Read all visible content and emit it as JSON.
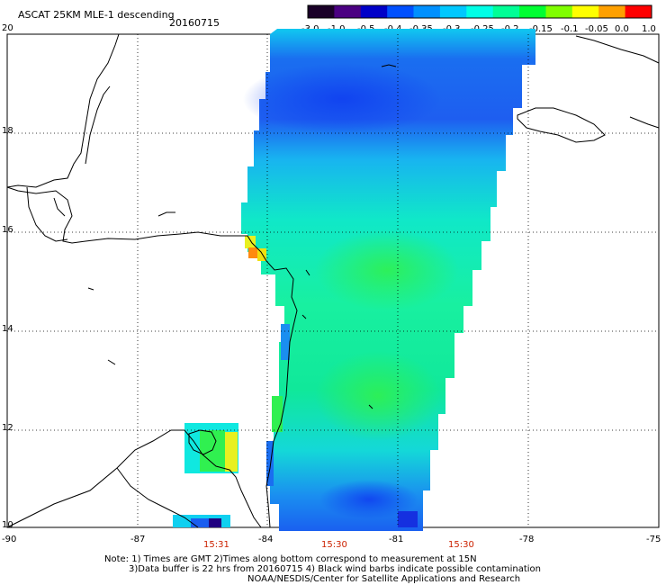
{
  "header": {
    "title": "ASCAT 25KM MLE-1 descending",
    "date": "20160715"
  },
  "colorbar": {
    "labels": [
      "-3.0",
      "-1.0",
      "-0.5",
      "-0.4",
      "-0.35",
      "-0.3",
      "-0.25",
      "-0.2",
      "-0.15",
      "-0.1",
      "-0.05",
      "0.0",
      "1.0"
    ],
    "colors": [
      "#1a0028",
      "#4b0082",
      "#0000c8",
      "#0050ff",
      "#0090ff",
      "#00c8ff",
      "#00ffe6",
      "#00ff96",
      "#00ff32",
      "#80ff00",
      "#ffff00",
      "#ffa000",
      "#ff0000"
    ]
  },
  "axes": {
    "lat_labels": [
      "20",
      "18",
      "16",
      "14",
      "12",
      "10"
    ],
    "lon_labels": [
      "-90",
      "-87",
      "-84",
      "-81",
      "-78",
      "-75"
    ]
  },
  "pass_times": [
    "15:31",
    "15:30",
    "15:30"
  ],
  "notes": {
    "line1": "Note: 1) Times are GMT 2)Times along bottom correspond to measurement at 15N",
    "line2": "3)Data buffer is 22 hrs from 20160715 4) Black wind barbs indicate possible contamination",
    "line3": "NOAA/NESDIS/Center for Satellite Applications and Research"
  }
}
